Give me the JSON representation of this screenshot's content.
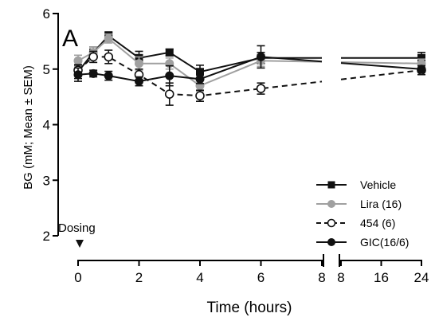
{
  "chart_data": {
    "type": "line",
    "panel_label": "A",
    "xlabel": "Time (hours)",
    "ylabel": "BG (mM; Mean ± SEM)",
    "ylim": [
      2,
      6
    ],
    "yticks": [
      2,
      3,
      4,
      5,
      6
    ],
    "x_segments": [
      {
        "range": [
          0,
          8
        ],
        "ticks": [
          0,
          2,
          4,
          6,
          8
        ]
      },
      {
        "range": [
          8,
          24
        ],
        "ticks": [
          8,
          16,
          24
        ]
      }
    ],
    "annotation": {
      "text": "Dosing",
      "x": 0
    },
    "legend_position": "bottom-right",
    "series": [
      {
        "name": "Vehicle",
        "color": "#111111",
        "marker": "square",
        "dashed": false,
        "x": [
          0,
          0.5,
          1,
          2,
          3,
          4,
          6,
          24
        ],
        "y": [
          4.95,
          5.3,
          5.6,
          5.2,
          5.3,
          4.95,
          5.2,
          5.2
        ],
        "err": [
          0.12,
          0.1,
          0.07,
          0.12,
          0.06,
          0.12,
          0.1,
          0.1
        ]
      },
      {
        "name": "Lira (16)",
        "color": "#a0a0a0",
        "marker": "circle",
        "dashed": false,
        "x": [
          0,
          0.5,
          1,
          2,
          3,
          4,
          6,
          24
        ],
        "y": [
          5.15,
          5.3,
          5.55,
          5.1,
          5.1,
          4.7,
          5.15,
          5.1
        ],
        "err": [
          0.1,
          0.1,
          0.08,
          0.12,
          0.1,
          0.1,
          0.1,
          0.08
        ]
      },
      {
        "name": "454 (6)",
        "color": "#111111",
        "marker": "open-circle",
        "dashed": true,
        "x": [
          0,
          0.5,
          1,
          2,
          3,
          4,
          6,
          24
        ],
        "y": [
          4.98,
          5.22,
          5.22,
          4.9,
          4.55,
          4.52,
          4.65,
          4.98
        ],
        "err": [
          0.1,
          0.1,
          0.12,
          0.1,
          0.2,
          0.1,
          0.1,
          0.08
        ]
      },
      {
        "name": "GIC(16/6)",
        "color": "#111111",
        "marker": "circle",
        "dashed": false,
        "x": [
          0,
          0.5,
          1,
          2,
          3,
          4,
          6,
          24
        ],
        "y": [
          4.9,
          4.92,
          4.88,
          4.78,
          4.88,
          4.82,
          5.22,
          5.0
        ],
        "err": [
          0.12,
          0.06,
          0.08,
          0.08,
          0.18,
          0.08,
          0.2,
          0.06
        ]
      }
    ]
  }
}
